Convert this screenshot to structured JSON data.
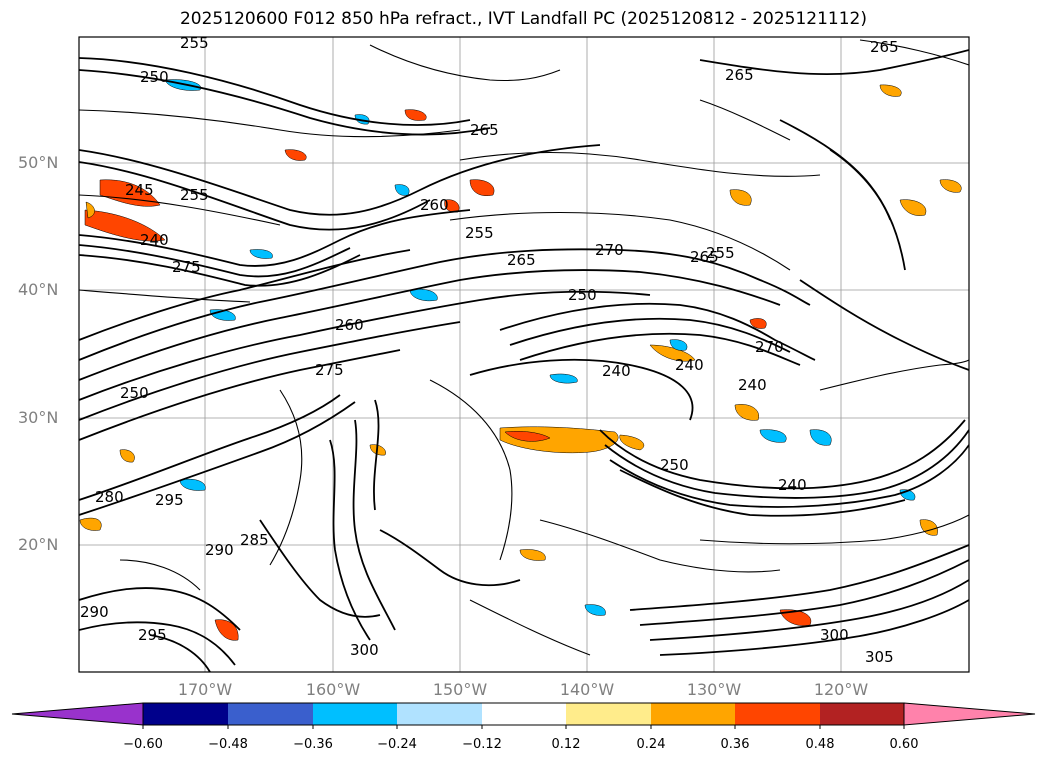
{
  "title": "2025120600 F012 850 hPa refract., IVT Landfall PC (2025120812 - 2025121112)",
  "lat_labels": [
    "50°N",
    "40°N",
    "30°N",
    "20°N"
  ],
  "lon_labels": [
    "170°W",
    "160°W",
    "150°W",
    "140°W",
    "130°W",
    "120°W"
  ],
  "contour_labels": [
    "255",
    "250",
    "265",
    "265",
    "265",
    "255",
    "245",
    "240",
    "255",
    "275",
    "270",
    "265",
    "250",
    "260",
    "265",
    "270",
    "255",
    "250",
    "240",
    "240",
    "250",
    "240",
    "240",
    "260",
    "275",
    "285",
    "290",
    "295",
    "300",
    "295",
    "290",
    "305",
    "300",
    "280"
  ],
  "colorbar": {
    "ticks": [
      "−0.60",
      "−0.48",
      "−0.36",
      "−0.24",
      "−0.12",
      "0.12",
      "0.24",
      "0.36",
      "0.48",
      "0.60"
    ],
    "colors": [
      "#9932cc",
      "#00008b",
      "#3a5fcd",
      "#00bfff",
      "#b0e2ff",
      "#ffffff",
      "#ffec8b",
      "#ffa500",
      "#ff4500",
      "#b22222",
      "#ff82ab"
    ]
  }
}
